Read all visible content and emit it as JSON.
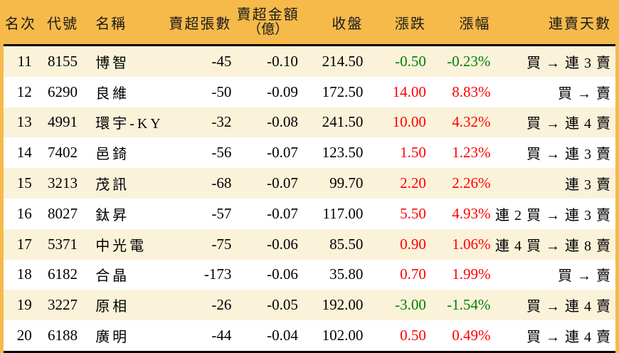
{
  "chart_data": {
    "type": "table",
    "description": "Taiwan stock market net-sell ranking table, ranks 11-20",
    "columns": [
      {
        "key": "rank",
        "label": "名次"
      },
      {
        "key": "code",
        "label": "代號"
      },
      {
        "key": "name",
        "label": "名稱"
      },
      {
        "key": "vol",
        "label": "賣超張數"
      },
      {
        "key": "amt",
        "label": "賣超金額",
        "label_line2": "（億）"
      },
      {
        "key": "close",
        "label": "收盤"
      },
      {
        "key": "chg",
        "label": "漲跌"
      },
      {
        "key": "pct",
        "label": "漲幅"
      },
      {
        "key": "streak",
        "label": "連賣天數"
      }
    ],
    "rows": [
      {
        "rank": "11",
        "code": "8155",
        "name": "博智",
        "vol": "-45",
        "amt": "-0.10",
        "close": "214.50",
        "chg": "-0.50",
        "pct": "-0.23%",
        "trend": "down",
        "streak": "買 → 連 3 賣"
      },
      {
        "rank": "12",
        "code": "6290",
        "name": "良維",
        "vol": "-50",
        "amt": "-0.09",
        "close": "172.50",
        "chg": "14.00",
        "pct": "8.83%",
        "trend": "up",
        "streak": "買 → 賣"
      },
      {
        "rank": "13",
        "code": "4991",
        "name": "環宇-KY",
        "vol": "-32",
        "amt": "-0.08",
        "close": "241.50",
        "chg": "10.00",
        "pct": "4.32%",
        "trend": "up",
        "streak": "買 → 連 4 賣"
      },
      {
        "rank": "14",
        "code": "7402",
        "name": "邑錡",
        "vol": "-56",
        "amt": "-0.07",
        "close": "123.50",
        "chg": "1.50",
        "pct": "1.23%",
        "trend": "up",
        "streak": "買 → 連 3 賣"
      },
      {
        "rank": "15",
        "code": "3213",
        "name": "茂訊",
        "vol": "-68",
        "amt": "-0.07",
        "close": "99.70",
        "chg": "2.20",
        "pct": "2.26%",
        "trend": "up",
        "streak": "連 3 賣"
      },
      {
        "rank": "16",
        "code": "8027",
        "name": "鈦昇",
        "vol": "-57",
        "amt": "-0.07",
        "close": "117.00",
        "chg": "5.50",
        "pct": "4.93%",
        "trend": "up",
        "streak": "連 2 買 → 連 3 賣"
      },
      {
        "rank": "17",
        "code": "5371",
        "name": "中光電",
        "vol": "-75",
        "amt": "-0.06",
        "close": "85.50",
        "chg": "0.90",
        "pct": "1.06%",
        "trend": "up",
        "streak": "連 4 買 → 連 8 賣"
      },
      {
        "rank": "18",
        "code": "6182",
        "name": "合晶",
        "vol": "-173",
        "amt": "-0.06",
        "close": "35.80",
        "chg": "0.70",
        "pct": "1.99%",
        "trend": "up",
        "streak": "買 → 賣"
      },
      {
        "rank": "19",
        "code": "3227",
        "name": "原相",
        "vol": "-26",
        "amt": "-0.05",
        "close": "192.00",
        "chg": "-3.00",
        "pct": "-1.54%",
        "trend": "down",
        "streak": "買 → 連 4 賣"
      },
      {
        "rank": "20",
        "code": "6188",
        "name": "廣明",
        "vol": "-44",
        "amt": "-0.04",
        "close": "102.00",
        "chg": "0.50",
        "pct": "0.49%",
        "trend": "up",
        "streak": "買 → 連 4 賣"
      }
    ],
    "layout": {
      "zebra_striping": true,
      "header_position": "top"
    }
  },
  "colors": {
    "header_bg": "#F6BA4B",
    "frame_border": "#F6BA4B",
    "row_odd_bg": "#FBF2DA",
    "row_even_bg": "#FFFFFF",
    "up_text": "#FF0000",
    "down_text": "#008000",
    "separator": "#000000",
    "body_text": "#000000"
  }
}
